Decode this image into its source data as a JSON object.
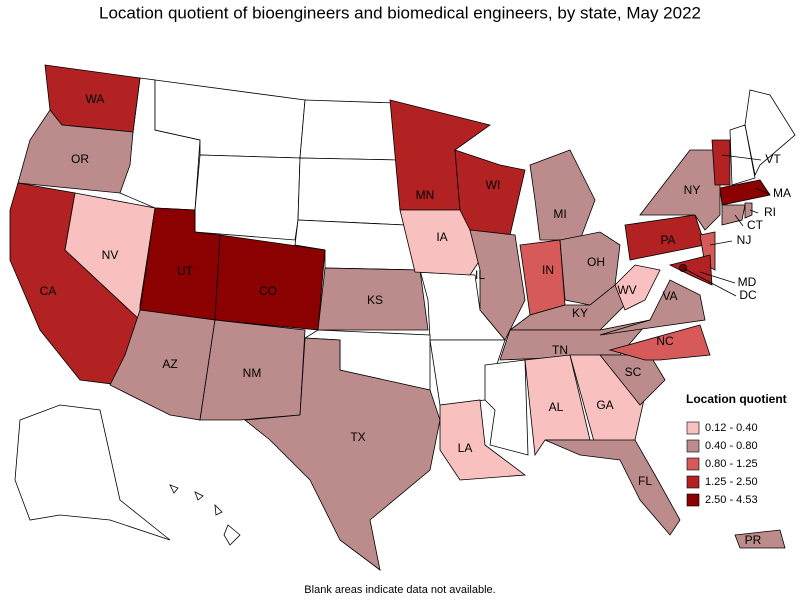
{
  "title": "Location quotient of bioengineers and biomedical engineers, by state, May 2022",
  "note": "Blank areas indicate data not available.",
  "legend": {
    "title": "Location quotient",
    "items": [
      {
        "label": "0.12 - 0.40",
        "color": "#f9c0c0"
      },
      {
        "label": "0.40 - 0.80",
        "color": "#bc8c8c"
      },
      {
        "label": "0.80 - 1.25",
        "color": "#d65a5a"
      },
      {
        "label": "1.25 - 2.50",
        "color": "#b22222"
      },
      {
        "label": "2.50 - 4.53",
        "color": "#8b0000"
      }
    ]
  },
  "states": [
    {
      "label": "WA",
      "color": "#b22222"
    },
    {
      "label": "OR",
      "color": "#bc8c8c"
    },
    {
      "label": "CA",
      "color": "#b22222"
    },
    {
      "label": "NV",
      "color": "#f9c0c0"
    },
    {
      "label": "UT",
      "color": "#8b0000"
    },
    {
      "label": "CO",
      "color": "#8b0000"
    },
    {
      "label": "AZ",
      "color": "#bc8c8c"
    },
    {
      "label": "NM",
      "color": "#bc8c8c"
    },
    {
      "label": "TX",
      "color": "#bc8c8c"
    },
    {
      "label": "KS",
      "color": "#bc8c8c"
    },
    {
      "label": "MN",
      "color": "#b22222"
    },
    {
      "label": "IA",
      "color": "#f9c0c0"
    },
    {
      "label": "WI",
      "color": "#b22222"
    },
    {
      "label": "IL",
      "color": "#bc8c8c"
    },
    {
      "label": "MI",
      "color": "#bc8c8c"
    },
    {
      "label": "IN",
      "color": "#d65a5a"
    },
    {
      "label": "OH",
      "color": "#bc8c8c"
    },
    {
      "label": "KY",
      "color": "#bc8c8c"
    },
    {
      "label": "TN",
      "color": "#bc8c8c"
    },
    {
      "label": "AL",
      "color": "#f9c0c0"
    },
    {
      "label": "GA",
      "color": "#f9c0c0"
    },
    {
      "label": "FL",
      "color": "#bc8c8c"
    },
    {
      "label": "SC",
      "color": "#bc8c8c"
    },
    {
      "label": "NC",
      "color": "#d65a5a"
    },
    {
      "label": "VA",
      "color": "#bc8c8c"
    },
    {
      "label": "WV",
      "color": "#f9c0c0"
    },
    {
      "label": "PA",
      "color": "#b22222"
    },
    {
      "label": "NY",
      "color": "#bc8c8c"
    },
    {
      "label": "VT",
      "color": "#b22222"
    },
    {
      "label": "MA",
      "color": "#8b0000"
    },
    {
      "label": "RI",
      "color": "#bc8c8c"
    },
    {
      "label": "CT",
      "color": "#bc8c8c"
    },
    {
      "label": "NJ",
      "color": "#d65a5a"
    },
    {
      "label": "MD",
      "color": "#b22222"
    },
    {
      "label": "DC",
      "color": "#8b0000"
    },
    {
      "label": "LA",
      "color": "#f9c0c0"
    },
    {
      "label": "PR",
      "color": "#bc8c8c"
    }
  ]
}
